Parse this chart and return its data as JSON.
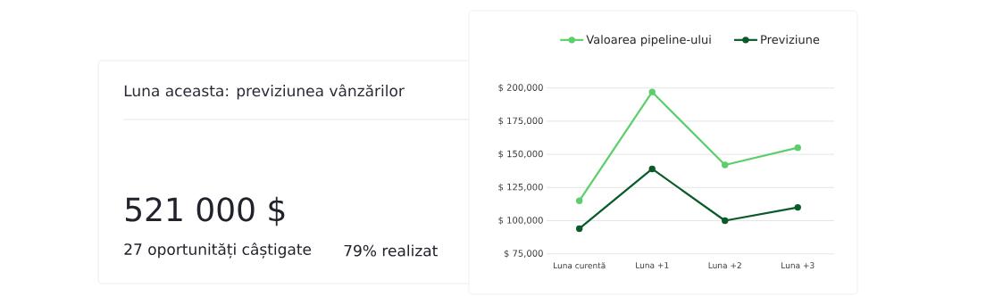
{
  "chart_data": [
    {
      "type": "other",
      "title": "Luna aceasta: previziunea vânzărilor",
      "annotations": [
        "521 000 $",
        "27 oportunități câștigate",
        "79% realizat"
      ]
    },
    {
      "type": "line",
      "categories": [
        "Luna curentă",
        "Luna +1",
        "Luna +2",
        "Luna +3"
      ],
      "series": [
        {
          "name": "Valoarea pipeline-ului",
          "color": "#5ccf6c",
          "values": [
            115000,
            197000,
            142000,
            155000
          ]
        },
        {
          "name": "Previziune",
          "color": "#0b5a2a",
          "values": [
            94000,
            139000,
            100000,
            110000
          ]
        }
      ],
      "ylim": [
        75000,
        200000
      ],
      "yticks": [
        {
          "value": 75000,
          "label": "$ 75,000"
        },
        {
          "value": 100000,
          "label": "$ 100,000"
        },
        {
          "value": 125000,
          "label": "$ 125,000"
        },
        {
          "value": 150000,
          "label": "$ 150,000"
        },
        {
          "value": 175000,
          "label": "$ 175,000"
        },
        {
          "value": 200000,
          "label": "$ 200,000"
        }
      ],
      "grid": "y",
      "legend": "top",
      "marker": "circle"
    }
  ]
}
